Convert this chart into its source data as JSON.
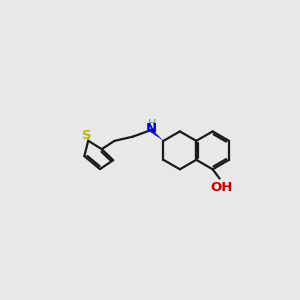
{
  "bg_color": "#e8e8e8",
  "bond_color": "#1a1a1a",
  "S_color": "#b8b800",
  "N_color": "#0000cc",
  "O_color": "#cc0000",
  "H_color": "#4d9999",
  "lw": 1.6,
  "wedge_color": "#0000cc",
  "figsize": [
    3.0,
    3.0
  ],
  "dpi": 100,
  "xlim": [
    0,
    10
  ],
  "ylim": [
    0,
    10
  ]
}
